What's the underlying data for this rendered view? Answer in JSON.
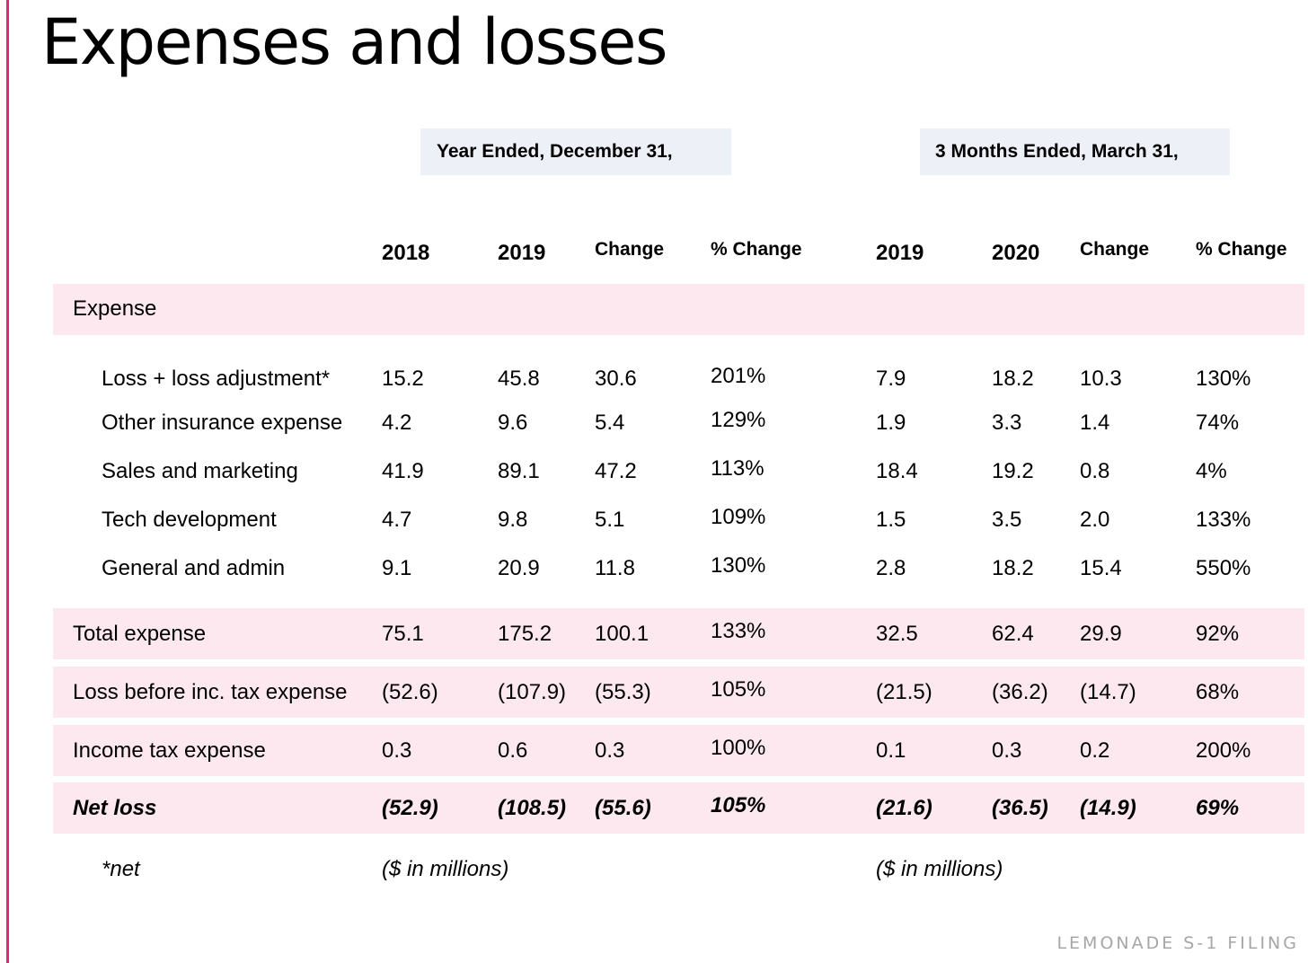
{
  "title": "Expenses and losses",
  "group_headers": {
    "annual": "Year Ended, December 31,",
    "quarterly": "3 Months Ended, March 31,"
  },
  "columns": [
    "2018",
    "2019",
    "Change",
    "% Change",
    "2019",
    "2020",
    "Change",
    "% Change"
  ],
  "section_label": "Expense",
  "rows": [
    {
      "label": "Loss + loss adjustment*",
      "values": [
        "15.2",
        "45.8",
        "30.6",
        "201%",
        "7.9",
        "18.2",
        "10.3",
        "130%"
      ]
    },
    {
      "label": "Other insurance expense",
      "values": [
        "4.2",
        "9.6",
        "5.4",
        "129%",
        "1.9",
        "3.3",
        "1.4",
        "74%"
      ]
    },
    {
      "label": "Sales and marketing",
      "values": [
        "41.9",
        "89.1",
        "47.2",
        "113%",
        "18.4",
        "19.2",
        "0.8",
        "4%"
      ]
    },
    {
      "label": "Tech development",
      "values": [
        "4.7",
        "9.8",
        "5.1",
        "109%",
        "1.5",
        "3.5",
        "2.0",
        "133%"
      ]
    },
    {
      "label": "General and admin",
      "values": [
        "9.1",
        "20.9",
        "11.8",
        "130%",
        "2.8",
        "18.2",
        "15.4",
        "550%"
      ]
    },
    {
      "label": "Total expense",
      "values": [
        "75.1",
        "175.2",
        "100.1",
        "133%",
        "32.5",
        "62.4",
        "29.9",
        "92%"
      ]
    },
    {
      "label": "Loss before inc. tax expense",
      "values": [
        "(52.6)",
        "(107.9)",
        "(55.3)",
        "105%",
        "(21.5)",
        "(36.2)",
        "(14.7)",
        "68%"
      ]
    },
    {
      "label": "Income tax expense",
      "values": [
        "0.3",
        "0.6",
        "0.3",
        "100%",
        "0.1",
        "0.3",
        "0.2",
        "200%"
      ]
    },
    {
      "label": "Net loss",
      "values": [
        "(52.9)",
        "(108.5)",
        "(55.6)",
        "105%",
        "(21.6)",
        "(36.5)",
        "(14.9)",
        "69%"
      ]
    }
  ],
  "footnotes": {
    "asterisk": "*net",
    "units_annual": "($ in millions)",
    "units_quarterly": "($ in millions)"
  },
  "brand": "LEMONADE S-1 FILING",
  "colors": {
    "accent": "#e0247c",
    "band": "#fde8f0",
    "header_box": "#edf0f6",
    "brand_text": "#a6a6a6"
  }
}
